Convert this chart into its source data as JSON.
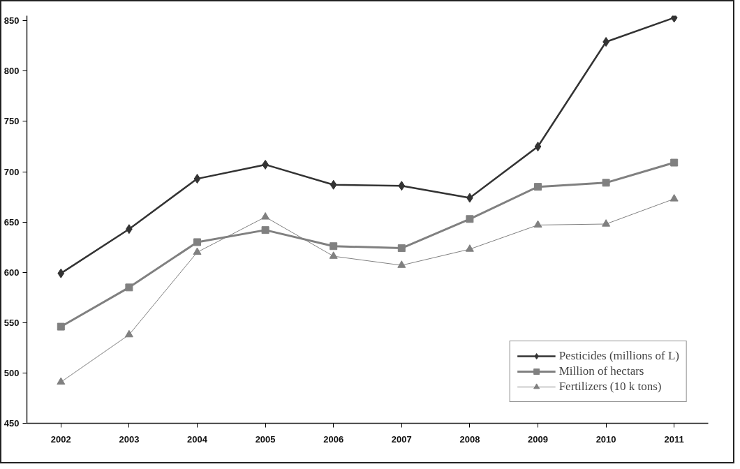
{
  "chart_data": {
    "type": "line",
    "categories": [
      "2002",
      "2003",
      "2004",
      "2005",
      "2006",
      "2007",
      "2008",
      "2009",
      "2010",
      "2011"
    ],
    "series": [
      {
        "name": "Pesticides (millions of L)",
        "color": "#333333",
        "marker": "diamond",
        "values": [
          599,
          643,
          693,
          707,
          687,
          686,
          674,
          725,
          829,
          853
        ]
      },
      {
        "name": "Million of hectars",
        "color": "#808080",
        "marker": "square",
        "values": [
          546,
          585,
          630,
          642,
          626,
          624,
          653,
          685,
          689,
          709
        ]
      },
      {
        "name": "Fertilizers (10 k tons)",
        "color": "#808080",
        "marker": "triangle",
        "values": [
          491,
          538,
          620,
          655,
          616,
          607,
          623,
          647,
          648,
          673
        ]
      }
    ],
    "ylim": [
      450,
      855
    ],
    "yticks": [
      450,
      500,
      550,
      600,
      650,
      700,
      750,
      800,
      850
    ],
    "grid": false,
    "legend": "bottom right",
    "line_style": "solid"
  }
}
